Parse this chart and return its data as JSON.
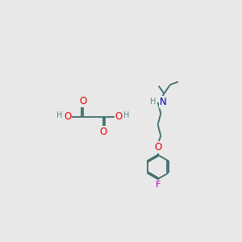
{
  "background_color": "#e8e8e8",
  "bond_color": "#3d6b6b",
  "bond_width": 1.3,
  "atom_colors": {
    "O": "#ee0000",
    "N": "#0000bb",
    "F": "#bb00bb",
    "H": "#5a8a8a",
    "C": "#3d6b6b"
  },
  "font_size": 7.5,
  "fig_size": [
    3.0,
    3.0
  ],
  "dpi": 100
}
